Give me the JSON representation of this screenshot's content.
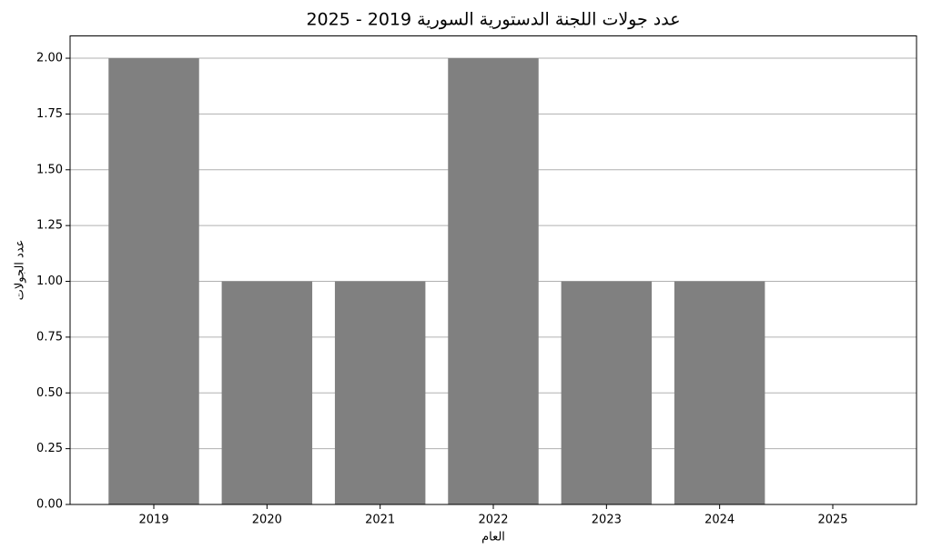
{
  "chart_data": {
    "type": "bar",
    "title": "عدد جولات اللجنة الدستورية السورية 2019 - 2025",
    "x_label": "العام",
    "y_label": "عدد الجولات",
    "categories": [
      "2019",
      "2020",
      "2021",
      "2022",
      "2023",
      "2024",
      "2025"
    ],
    "values": [
      2,
      1,
      1,
      2,
      1,
      1,
      0
    ],
    "color": "#808080",
    "ylim": [
      0,
      2.1
    ],
    "yticks": [
      {
        "value": 0,
        "label": "0.00"
      },
      {
        "value": 0.25,
        "label": "0.25"
      },
      {
        "value": 0.5,
        "label": "0.50"
      },
      {
        "value": 0.75,
        "label": "0.75"
      },
      {
        "value": 1,
        "label": "1.00"
      },
      {
        "value": 1.25,
        "label": "1.25"
      },
      {
        "value": 1.5,
        "label": "1.50"
      },
      {
        "value": 1.75,
        "label": "1.75"
      },
      {
        "value": 2,
        "label": "2.00"
      }
    ],
    "grid": true
  }
}
